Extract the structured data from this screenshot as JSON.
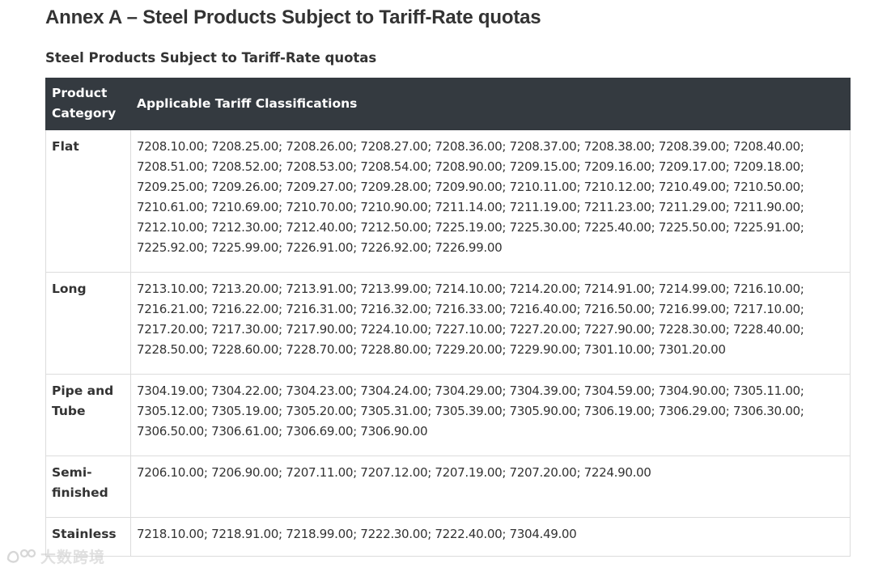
{
  "page": {
    "title": "Annex A – Steel Products Subject to Tariff-Rate quotas",
    "caption": "Steel Products Subject to Tariff-Rate quotas"
  },
  "table": {
    "headers": [
      "Product Category",
      "Applicable Tariff Classifications"
    ],
    "rows": [
      {
        "category": "Flat",
        "codes": "7208.10.00; 7208.25.00; 7208.26.00; 7208.27.00; 7208.36.00; 7208.37.00; 7208.38.00; 7208.39.00; 7208.40.00; 7208.51.00; 7208.52.00; 7208.53.00; 7208.54.00; 7208.90.00; 7209.15.00; 7209.16.00; 7209.17.00; 7209.18.00; 7209.25.00; 7209.26.00; 7209.27.00; 7209.28.00; 7209.90.00; 7210.11.00; 7210.12.00; 7210.49.00; 7210.50.00; 7210.61.00; 7210.69.00; 7210.70.00; 7210.90.00; 7211.14.00; 7211.19.00; 7211.23.00; 7211.29.00; 7211.90.00; 7212.10.00; 7212.30.00; 7212.40.00; 7212.50.00; 7225.19.00; 7225.30.00; 7225.40.00; 7225.50.00; 7225.91.00; 7225.92.00; 7225.99.00; 7226.91.00; 7226.92.00; 7226.99.00"
      },
      {
        "category": "Long",
        "codes": "7213.10.00; 7213.20.00; 7213.91.00; 7213.99.00; 7214.10.00; 7214.20.00; 7214.91.00; 7214.99.00; 7216.10.00; 7216.21.00; 7216.22.00; 7216.31.00; 7216.32.00; 7216.33.00; 7216.40.00; 7216.50.00; 7216.99.00; 7217.10.00; 7217.20.00; 7217.30.00; 7217.90.00; 7224.10.00; 7227.10.00; 7227.20.00; 7227.90.00; 7228.30.00; 7228.40.00; 7228.50.00; 7228.60.00; 7228.70.00; 7228.80.00; 7229.20.00; 7229.90.00; 7301.10.00; 7301.20.00"
      },
      {
        "category": "Pipe and Tube",
        "codes": "7304.19.00; 7304.22.00; 7304.23.00; 7304.24.00; 7304.29.00; 7304.39.00; 7304.59.00; 7304.90.00; 7305.11.00; 7305.12.00; 7305.19.00; 7305.20.00; 7305.31.00; 7305.39.00; 7305.90.00; 7306.19.00; 7306.29.00; 7306.30.00; 7306.50.00; 7306.61.00; 7306.69.00; 7306.90.00"
      },
      {
        "category": "Semi-finished",
        "codes": "7206.10.00; 7206.90.00; 7207.11.00; 7207.12.00; 7207.19.00; 7207.20.00; 7224.90.00"
      },
      {
        "category": "Stainless",
        "codes": "7218.10.00; 7218.91.00; 7218.99.00; 7222.30.00; 7222.40.00; 7304.49.00"
      }
    ]
  },
  "watermark": {
    "text": "大数跨境",
    "icon": "brand-logo-icon"
  },
  "colors": {
    "header_bg": "#343a40",
    "header_text": "#ffffff",
    "body_text": "#333333",
    "border": "#dcdcdc"
  }
}
